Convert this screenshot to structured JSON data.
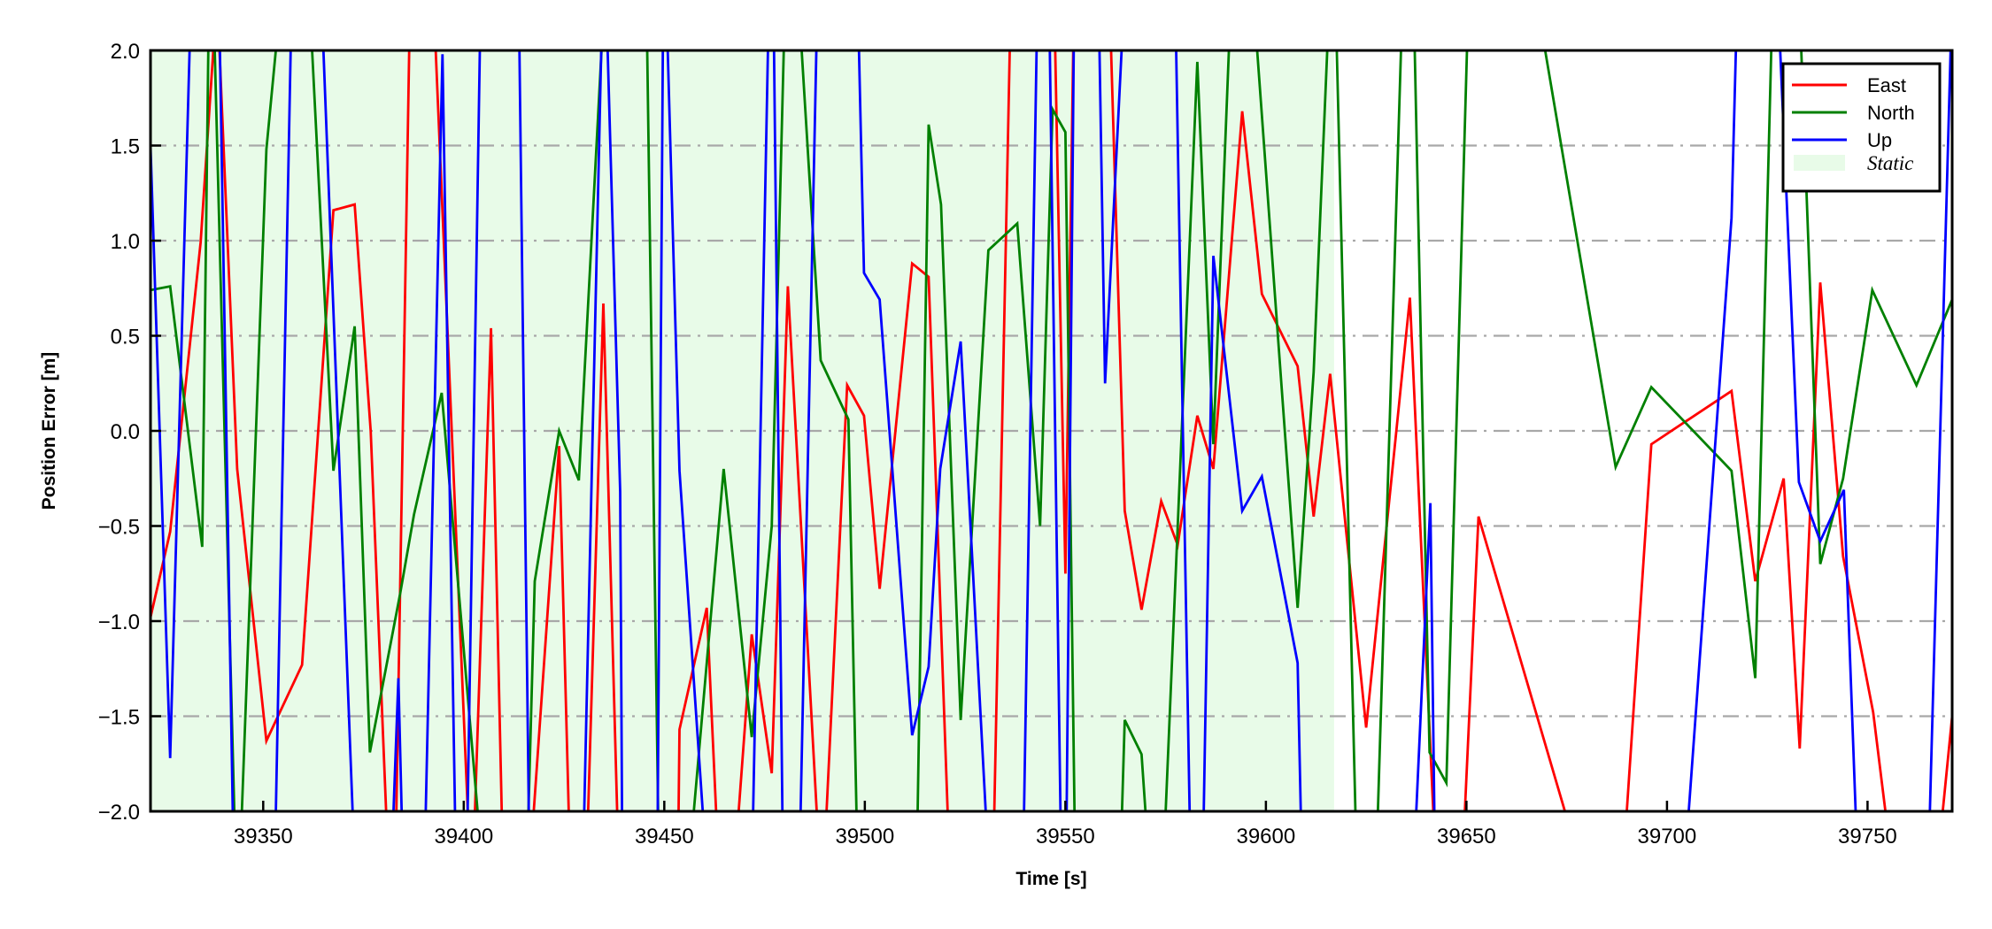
{
  "chart_data": {
    "type": "line",
    "title": "",
    "xlabel": "Time [s]",
    "ylabel": "Position Error [m]",
    "xlim": [
      39321.9,
      39771.1
    ],
    "ylim": [
      -2.0,
      2.0
    ],
    "xticks": [
      39350,
      39400,
      39450,
      39500,
      39550,
      39600,
      39650,
      39700,
      39750
    ],
    "xtick_labels": [
      "39350",
      "39400",
      "39450",
      "39500",
      "39550",
      "39600",
      "39650",
      "39700",
      "39750"
    ],
    "yticks": [
      -2.0,
      -1.5,
      -1.0,
      -0.5,
      0.0,
      0.5,
      1.0,
      1.5,
      2.0
    ],
    "ytick_labels": [
      "−2.0",
      "−1.5",
      "−1.0",
      "−0.5",
      "0.0",
      "0.5",
      "1.0",
      "1.5",
      "2.0"
    ],
    "grid": "horizontal dash-dot",
    "legend_position": "top-right",
    "static_interval": {
      "label": "Static",
      "start": 39321.9,
      "end": 39617.0,
      "color": "#e8fbe8"
    },
    "series": [
      {
        "name": "East",
        "color": "#ff0000",
        "points": [
          [
            39321.9,
            -0.98
          ],
          [
            39326.8,
            -0.53
          ],
          [
            39334.4,
            0.99
          ],
          [
            39338.5,
            2.3
          ],
          [
            39343.5,
            -0.2
          ],
          [
            39350.8,
            -1.63
          ],
          [
            39359.7,
            -1.23
          ],
          [
            39367.5,
            1.16
          ],
          [
            39372.8,
            1.19
          ],
          [
            39376.8,
            0.0
          ],
          [
            39381.6,
            -2.5
          ],
          [
            39382.8,
            -2.5
          ],
          [
            39386.8,
            2.5
          ],
          [
            39392.0,
            2.5
          ],
          [
            39402.0,
            -2.5
          ],
          [
            39406.8,
            0.54
          ],
          [
            39410.0,
            -2.5
          ],
          [
            39415.8,
            -2.5
          ],
          [
            39423.8,
            -0.08
          ],
          [
            39426.8,
            -2.5
          ],
          [
            39430.3,
            -2.5
          ],
          [
            39434.8,
            0.67
          ],
          [
            39438.9,
            -2.5
          ],
          [
            39453.3,
            -2.5
          ],
          [
            39453.8,
            -1.57
          ],
          [
            39460.6,
            -0.93
          ],
          [
            39464.0,
            -2.5
          ],
          [
            39466.8,
            -2.5
          ],
          [
            39471.8,
            -1.07
          ],
          [
            39476.8,
            -1.8
          ],
          [
            39480.8,
            0.76
          ],
          [
            39489.3,
            -2.5
          ],
          [
            39495.6,
            0.24
          ],
          [
            39499.8,
            0.08
          ],
          [
            39503.7,
            -0.83
          ],
          [
            39511.8,
            0.88
          ],
          [
            39515.9,
            0.81
          ],
          [
            39521.5,
            -2.5
          ],
          [
            39531.8,
            -2.5
          ],
          [
            39536.6,
            2.5
          ],
          [
            39547.0,
            2.5
          ],
          [
            39550.0,
            -0.75
          ],
          [
            39552.3,
            2.5
          ],
          [
            39560.7,
            2.5
          ],
          [
            39564.8,
            -0.42
          ],
          [
            39569.0,
            -0.94
          ],
          [
            39573.9,
            -0.37
          ],
          [
            39578.0,
            -0.6
          ],
          [
            39582.9,
            0.08
          ],
          [
            39586.9,
            -0.2
          ],
          [
            39594.1,
            1.68
          ],
          [
            39599.0,
            0.72
          ],
          [
            39607.9,
            0.34
          ],
          [
            39611.9,
            -0.45
          ],
          [
            39616.0,
            0.3
          ],
          [
            39625.0,
            -1.56
          ],
          [
            39635.9,
            0.7
          ],
          [
            39642.8,
            -2.5
          ],
          [
            39648.5,
            -2.5
          ],
          [
            39653.0,
            -0.45
          ],
          [
            39681.5,
            -2.5
          ],
          [
            39688.4,
            -2.5
          ],
          [
            39696.1,
            -0.07
          ],
          [
            39716.1,
            0.21
          ],
          [
            39722.0,
            -0.79
          ],
          [
            39729.1,
            -0.25
          ],
          [
            39733.1,
            -1.67
          ],
          [
            39738.2,
            0.78
          ],
          [
            39743.9,
            -0.66
          ],
          [
            39751.4,
            -1.48
          ],
          [
            39757.4,
            -2.5
          ],
          [
            39766.4,
            -2.5
          ],
          [
            39771.1,
            -1.5
          ]
        ]
      },
      {
        "name": "North",
        "color": "#008000",
        "points": [
          [
            39321.9,
            0.74
          ],
          [
            39326.8,
            0.76
          ],
          [
            39334.8,
            -0.61
          ],
          [
            39336.6,
            2.5
          ],
          [
            39337.3,
            2.5
          ],
          [
            39343.4,
            -2.5
          ],
          [
            39343.8,
            -2.5
          ],
          [
            39350.8,
            1.48
          ],
          [
            39355.4,
            2.5
          ],
          [
            39361.0,
            2.5
          ],
          [
            39367.5,
            -0.21
          ],
          [
            39372.8,
            0.55
          ],
          [
            39376.6,
            -1.69
          ],
          [
            39384.2,
            -0.85
          ],
          [
            39387.6,
            -0.44
          ],
          [
            39394.5,
            0.2
          ],
          [
            39405.5,
            -2.5
          ],
          [
            39415.5,
            -2.5
          ],
          [
            39417.7,
            -0.79
          ],
          [
            39423.8,
            0.0
          ],
          [
            39428.7,
            -0.26
          ],
          [
            39435.6,
            2.5
          ],
          [
            39445.4,
            2.5
          ],
          [
            39448.8,
            -2.5
          ],
          [
            39455.3,
            -2.5
          ],
          [
            39464.8,
            -0.2
          ],
          [
            39471.8,
            -1.61
          ],
          [
            39476.8,
            -0.5
          ],
          [
            39480.4,
            2.5
          ],
          [
            39482.8,
            2.5
          ],
          [
            39489.0,
            0.37
          ],
          [
            39495.9,
            0.06
          ],
          [
            39498.4,
            -2.5
          ],
          [
            39512.8,
            -2.5
          ],
          [
            39515.9,
            1.61
          ],
          [
            39519.0,
            1.19
          ],
          [
            39523.9,
            -1.52
          ],
          [
            39530.8,
            0.95
          ],
          [
            39538.0,
            1.09
          ],
          [
            39543.7,
            -0.5
          ],
          [
            39546.8,
            1.69
          ],
          [
            39550.0,
            1.57
          ],
          [
            39552.6,
            -2.5
          ],
          [
            39563.4,
            -2.5
          ],
          [
            39564.8,
            -1.52
          ],
          [
            39569.0,
            -1.7
          ],
          [
            39571.6,
            -2.5
          ],
          [
            39574.0,
            -2.5
          ],
          [
            39582.9,
            1.94
          ],
          [
            39586.9,
            -0.07
          ],
          [
            39591.7,
            2.5
          ],
          [
            39596.1,
            2.5
          ],
          [
            39607.9,
            -0.93
          ],
          [
            39611.9,
            0.31
          ],
          [
            39616.3,
            2.5
          ],
          [
            39617.1,
            2.5
          ],
          [
            39622.9,
            -2.5
          ],
          [
            39627.2,
            -2.5
          ],
          [
            39634.4,
            2.5
          ],
          [
            39636.6,
            2.5
          ],
          [
            39640.8,
            -1.69
          ],
          [
            39645.0,
            -1.85
          ],
          [
            39650.8,
            2.5
          ],
          [
            39665.6,
            2.5
          ],
          [
            39687.2,
            -0.19
          ],
          [
            39696.1,
            0.23
          ],
          [
            39716.1,
            -0.21
          ],
          [
            39722.0,
            -1.3
          ],
          [
            39726.6,
            2.5
          ],
          [
            39732.6,
            2.5
          ],
          [
            39738.2,
            -0.7
          ],
          [
            39743.9,
            -0.25
          ],
          [
            39751.2,
            0.74
          ],
          [
            39762.2,
            0.24
          ],
          [
            39771.1,
            0.69
          ]
        ]
      },
      {
        "name": "Up",
        "color": "#0000ff",
        "points": [
          [
            39321.9,
            1.5
          ],
          [
            39326.8,
            -1.72
          ],
          [
            39332.3,
            2.5
          ],
          [
            39338.8,
            2.5
          ],
          [
            39342.8,
            -2.5
          ],
          [
            39352.7,
            -2.5
          ],
          [
            39357.3,
            2.5
          ],
          [
            39364.1,
            2.5
          ],
          [
            39373.2,
            -2.5
          ],
          [
            39381.6,
            -2.5
          ],
          [
            39383.7,
            -1.3
          ],
          [
            39385.1,
            -2.5
          ],
          [
            39390.0,
            -2.5
          ],
          [
            39394.7,
            1.98
          ],
          [
            39398.2,
            -2.5
          ],
          [
            39400.6,
            -2.5
          ],
          [
            39404.4,
            2.5
          ],
          [
            39413.6,
            2.5
          ],
          [
            39416.5,
            -2.5
          ],
          [
            39429.5,
            -2.5
          ],
          [
            39434.8,
            2.5
          ],
          [
            39435.2,
            2.5
          ],
          [
            39439.0,
            -0.32
          ],
          [
            39439.6,
            -2.5
          ],
          [
            39448.2,
            -2.5
          ],
          [
            39449.8,
            2.5
          ],
          [
            39450.2,
            2.5
          ],
          [
            39453.8,
            -0.21
          ],
          [
            39461.2,
            -2.5
          ],
          [
            39471.7,
            -2.5
          ],
          [
            39476.3,
            2.5
          ],
          [
            39477.1,
            2.5
          ],
          [
            39479.7,
            -2.5
          ],
          [
            39483.5,
            -2.5
          ],
          [
            39488.4,
            2.5
          ],
          [
            39498.0,
            2.5
          ],
          [
            39499.8,
            0.83
          ],
          [
            39503.7,
            0.69
          ],
          [
            39511.8,
            -1.6
          ],
          [
            39515.9,
            -1.24
          ],
          [
            39518.8,
            -0.2
          ],
          [
            39523.9,
            0.47
          ],
          [
            39531.4,
            -2.5
          ],
          [
            39539.3,
            -2.5
          ],
          [
            39543.2,
            2.5
          ],
          [
            39545.8,
            2.5
          ],
          [
            39549.1,
            -2.5
          ],
          [
            39550.1,
            -2.5
          ],
          [
            39552.3,
            2.5
          ],
          [
            39558.1,
            2.5
          ],
          [
            39559.9,
            0.25
          ],
          [
            39565.2,
            2.5
          ],
          [
            39577.2,
            2.5
          ],
          [
            39581.4,
            -2.5
          ],
          [
            39584.1,
            -2.5
          ],
          [
            39586.9,
            0.92
          ],
          [
            39594.1,
            -0.42
          ],
          [
            39599.0,
            -0.24
          ],
          [
            39607.9,
            -1.22
          ],
          [
            39609.2,
            -2.5
          ],
          [
            39636.4,
            -2.5
          ],
          [
            39641.0,
            -0.38
          ],
          [
            39642.3,
            -2.5
          ],
          [
            39703.7,
            -2.5
          ],
          [
            39716.1,
            1.12
          ],
          [
            39717.8,
            2.5
          ],
          [
            39727.2,
            2.5
          ],
          [
            39732.9,
            -0.27
          ],
          [
            39738.2,
            -0.58
          ],
          [
            39744.1,
            -0.31
          ],
          [
            39747.9,
            -2.5
          ],
          [
            39764.9,
            -2.5
          ],
          [
            39771.1,
            2.3
          ]
        ]
      }
    ]
  }
}
